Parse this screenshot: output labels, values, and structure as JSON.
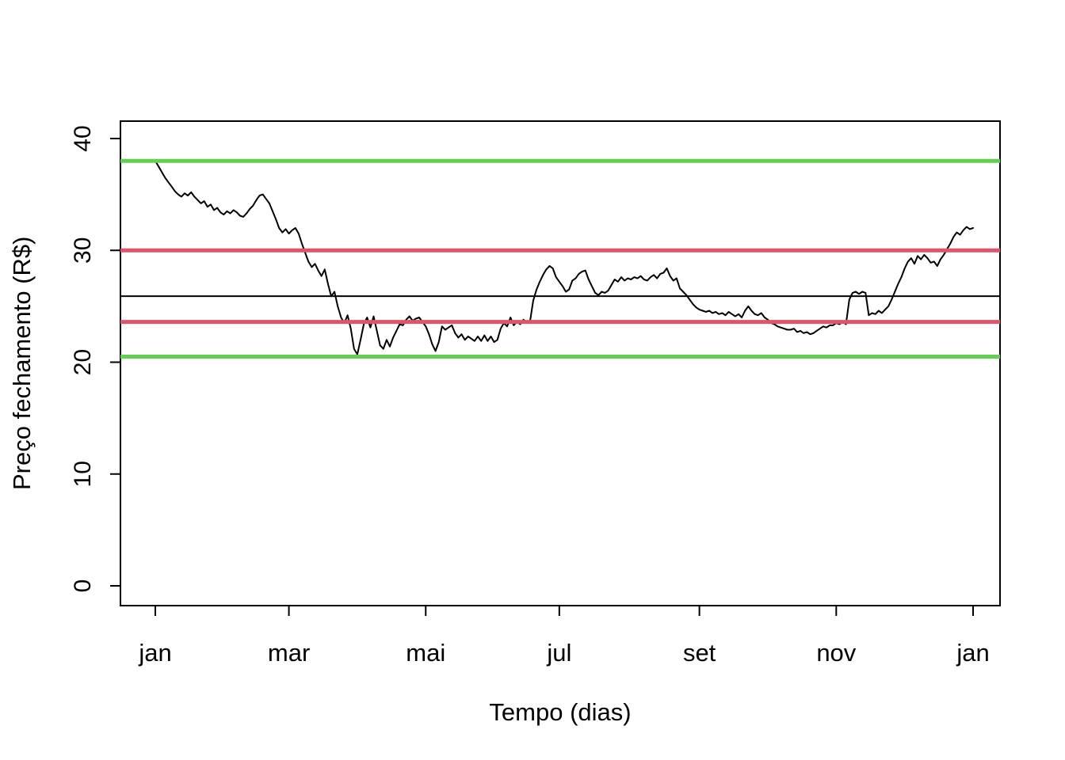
{
  "figure": {
    "background": "#ffffff"
  },
  "chart_data": {
    "type": "line",
    "title": "",
    "xlabel": "Tempo (dias)",
    "ylabel": "Preço fechamento (R$)",
    "ylim": [
      0,
      40
    ],
    "grid": false,
    "legend": "none",
    "series_name": "Preço de fechamento",
    "series_color": "#000000",
    "y_ticks": [
      0,
      10,
      20,
      30,
      40
    ],
    "x_ticks": {
      "positions": [
        0,
        41,
        83,
        124,
        167,
        209,
        251
      ],
      "labels": [
        "jan",
        "mar",
        "mai",
        "jul",
        "set",
        "nov",
        "jan"
      ]
    },
    "reference_lines": [
      {
        "name": "upper-green-band",
        "value": 38.0,
        "color": "#61D04F",
        "width": 5
      },
      {
        "name": "upper-red-band",
        "value": 30.0,
        "color": "#DF536B",
        "width": 5
      },
      {
        "name": "mean-line",
        "value": 25.9,
        "color": "#000000",
        "width": 2
      },
      {
        "name": "lower-red-band",
        "value": 23.6,
        "color": "#DF536B",
        "width": 5
      },
      {
        "name": "lower-green-band",
        "value": 20.5,
        "color": "#61D04F",
        "width": 5
      }
    ],
    "values": [
      38.0,
      37.5,
      37.0,
      36.5,
      36.1,
      35.7,
      35.3,
      35.0,
      34.8,
      35.1,
      34.9,
      35.2,
      34.8,
      34.5,
      34.2,
      34.4,
      33.9,
      34.1,
      33.6,
      33.8,
      33.4,
      33.2,
      33.5,
      33.3,
      33.6,
      33.4,
      33.1,
      33.0,
      33.3,
      33.7,
      34.0,
      34.5,
      34.9,
      35.0,
      34.6,
      34.2,
      33.5,
      32.8,
      32.0,
      31.6,
      31.9,
      31.5,
      31.8,
      32.0,
      31.5,
      30.6,
      29.8,
      29.0,
      28.5,
      28.8,
      28.2,
      27.7,
      28.3,
      27.0,
      25.9,
      26.3,
      25.0,
      24.0,
      23.5,
      24.2,
      23.0,
      21.2,
      20.7,
      22.0,
      23.4,
      24.0,
      23.1,
      24.1,
      22.8,
      21.5,
      21.2,
      22.0,
      21.4,
      22.2,
      22.8,
      23.4,
      23.3,
      23.8,
      24.1,
      23.7,
      23.9,
      24.0,
      23.6,
      23.2,
      22.5,
      21.6,
      21.0,
      21.8,
      23.2,
      22.9,
      23.1,
      23.3,
      22.6,
      22.2,
      22.5,
      22.0,
      22.3,
      22.1,
      21.9,
      22.3,
      21.9,
      22.4,
      21.9,
      22.3,
      21.8,
      22.0,
      23.0,
      23.5,
      23.2,
      24.0,
      23.3,
      23.6,
      23.4,
      23.8,
      23.5,
      23.6,
      25.5,
      26.5,
      27.2,
      27.8,
      28.3,
      28.6,
      28.4,
      27.6,
      27.2,
      26.8,
      26.3,
      26.5,
      27.3,
      27.5,
      27.9,
      28.1,
      28.2,
      27.4,
      26.8,
      26.2,
      26.0,
      26.3,
      26.2,
      26.4,
      26.9,
      27.4,
      27.2,
      27.6,
      27.3,
      27.5,
      27.4,
      27.6,
      27.5,
      27.7,
      27.4,
      27.3,
      27.6,
      27.8,
      27.5,
      27.9,
      28.0,
      28.4,
      27.7,
      27.3,
      27.5,
      26.6,
      26.3,
      26.0,
      25.6,
      25.2,
      24.9,
      24.7,
      24.6,
      24.5,
      24.6,
      24.4,
      24.5,
      24.3,
      24.4,
      24.2,
      24.5,
      24.3,
      24.1,
      24.3,
      24.0,
      24.6,
      25.0,
      24.6,
      24.3,
      24.2,
      24.4,
      24.0,
      23.8,
      23.5,
      23.4,
      23.2,
      23.1,
      23.0,
      22.9,
      22.9,
      23.0,
      22.7,
      22.8,
      22.6,
      22.7,
      22.5,
      22.6,
      22.8,
      23.0,
      23.2,
      23.1,
      23.3,
      23.3,
      23.5,
      23.4,
      23.6,
      23.4,
      25.6,
      26.2,
      26.3,
      26.1,
      26.3,
      26.2,
      24.2,
      24.4,
      24.3,
      24.6,
      24.4,
      24.7,
      25.0,
      25.6,
      26.3,
      27.0,
      27.6,
      28.4,
      29.0,
      29.3,
      28.8,
      29.5,
      29.2,
      29.6,
      29.3,
      28.9,
      29.0,
      28.6,
      29.2,
      29.6,
      30.1,
      30.6,
      31.2,
      31.6,
      31.4,
      31.8,
      32.1,
      31.9,
      32.0
    ]
  }
}
